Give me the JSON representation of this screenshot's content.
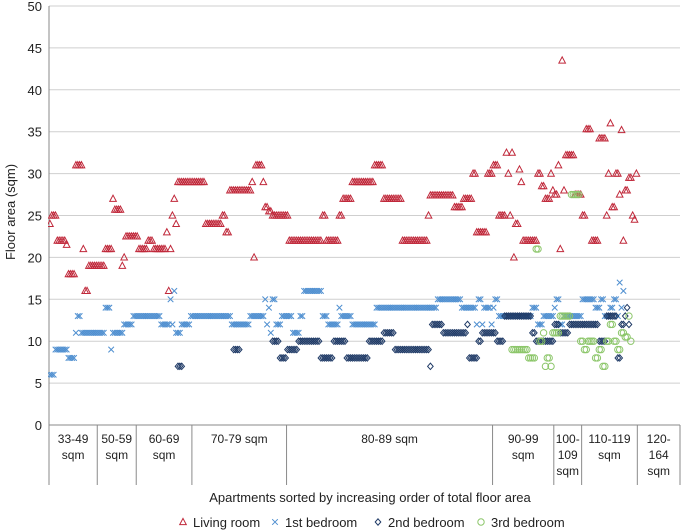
{
  "chart_data": {
    "type": "scatter",
    "title": "",
    "xlabel": "Apartments sorted by increasing order of total floor area",
    "ylabel": "Floor area (sqm)",
    "ylim": [
      0,
      50
    ],
    "yticks": [
      0,
      5,
      10,
      15,
      20,
      25,
      30,
      35,
      40,
      45,
      50
    ],
    "grid": "horizontal",
    "legend_position": "bottom",
    "x_count": 340,
    "groups": [
      {
        "label": "33-49 sqm",
        "start": 0,
        "end": 26
      },
      {
        "label": "50-59 sqm",
        "start": 26,
        "end": 47
      },
      {
        "label": "60-69 sqm",
        "start": 47,
        "end": 77
      },
      {
        "label": "70-79 sqm",
        "start": 77,
        "end": 128
      },
      {
        "label": "80-89 sqm",
        "start": 128,
        "end": 239
      },
      {
        "label": "90-99 sqm",
        "start": 239,
        "end": 272
      },
      {
        "label": "100-109 sqm",
        "start": 272,
        "end": 287
      },
      {
        "label": "110-119 sqm",
        "start": 287,
        "end": 317
      },
      {
        "label": "120-164 sqm",
        "start": 317,
        "end": 340
      }
    ],
    "series": [
      {
        "name": "Living room",
        "marker": "triangle",
        "color": "#c0283a",
        "runs": [
          [
            0,
            1,
            24
          ],
          [
            1,
            4,
            25
          ],
          [
            4,
            9,
            22
          ],
          [
            9,
            10,
            21.5
          ],
          [
            10,
            14,
            18
          ],
          [
            14,
            18,
            31
          ],
          [
            18,
            19,
            21
          ],
          [
            19,
            21,
            16
          ],
          [
            21,
            30,
            19
          ],
          [
            30,
            34,
            21
          ],
          [
            34,
            35,
            27
          ],
          [
            35,
            39,
            25.7
          ],
          [
            39,
            40,
            19
          ],
          [
            40,
            41,
            20
          ],
          [
            41,
            48,
            22.5
          ],
          [
            48,
            53,
            21
          ],
          [
            53,
            56,
            22
          ],
          [
            56,
            63,
            21
          ],
          [
            63,
            64,
            23
          ],
          [
            64,
            65,
            16
          ],
          [
            65,
            66,
            21
          ],
          [
            66,
            67,
            25
          ],
          [
            67,
            68,
            27
          ],
          [
            68,
            69,
            24
          ],
          [
            69,
            84,
            29
          ],
          [
            84,
            93,
            24
          ],
          [
            93,
            95,
            25
          ],
          [
            95,
            97,
            23
          ],
          [
            97,
            109,
            28
          ],
          [
            109,
            110,
            29
          ],
          [
            110,
            111,
            20
          ],
          [
            111,
            115,
            31
          ],
          [
            115,
            116,
            29
          ],
          [
            116,
            118,
            26
          ],
          [
            118,
            120,
            25.5
          ],
          [
            120,
            129,
            25
          ],
          [
            129,
            147,
            22
          ],
          [
            147,
            149,
            25
          ],
          [
            149,
            156,
            22
          ],
          [
            156,
            158,
            25
          ],
          [
            158,
            163,
            27
          ],
          [
            163,
            175,
            29
          ],
          [
            175,
            180,
            31
          ],
          [
            180,
            187,
            27
          ],
          [
            187,
            190,
            27
          ],
          [
            190,
            204,
            22
          ],
          [
            204,
            205,
            25
          ],
          [
            205,
            218,
            27.4
          ],
          [
            218,
            223,
            26
          ],
          [
            223,
            228,
            27
          ],
          [
            228,
            230,
            30
          ],
          [
            230,
            236,
            23
          ],
          [
            236,
            239,
            30
          ],
          [
            239,
            242,
            31
          ],
          [
            242,
            246,
            25
          ],
          [
            246,
            247,
            32.5
          ],
          [
            247,
            248,
            30
          ],
          [
            248,
            249,
            25
          ],
          [
            249,
            250,
            32.5
          ],
          [
            250,
            251,
            20
          ],
          [
            251,
            253,
            24
          ],
          [
            253,
            254,
            30.5
          ],
          [
            254,
            255,
            29
          ],
          [
            255,
            263,
            22
          ],
          [
            263,
            265,
            30
          ],
          [
            265,
            267,
            28.5
          ],
          [
            267,
            270,
            27
          ],
          [
            270,
            271,
            30
          ],
          [
            271,
            272,
            28
          ],
          [
            272,
            274,
            27.5
          ],
          [
            274,
            275,
            31
          ],
          [
            275,
            276,
            21
          ],
          [
            276,
            277,
            43.5
          ],
          [
            277,
            278,
            28
          ],
          [
            278,
            283,
            32.2
          ],
          [
            283,
            287,
            27.5
          ],
          [
            287,
            289,
            25
          ],
          [
            289,
            292,
            35.3
          ],
          [
            292,
            296,
            22
          ],
          [
            296,
            300,
            34.2
          ],
          [
            300,
            301,
            25
          ],
          [
            301,
            302,
            30
          ],
          [
            302,
            303,
            36
          ],
          [
            303,
            305,
            26
          ],
          [
            305,
            307,
            30
          ],
          [
            307,
            308,
            27.5
          ],
          [
            308,
            309,
            35.2
          ],
          [
            309,
            310,
            22
          ],
          [
            310,
            312,
            28
          ],
          [
            312,
            314,
            29.5
          ],
          [
            314,
            315,
            25
          ],
          [
            315,
            316,
            24.5
          ],
          [
            316,
            317,
            30
          ]
        ]
      },
      {
        "name": "1st bedroom",
        "marker": "x",
        "color": "#4f8fd0",
        "runs": [
          [
            0,
            3,
            6
          ],
          [
            3,
            10,
            9
          ],
          [
            10,
            14,
            8
          ],
          [
            14,
            15,
            11
          ],
          [
            15,
            17,
            13
          ],
          [
            17,
            30,
            11
          ],
          [
            30,
            33,
            14
          ],
          [
            33,
            34,
            9
          ],
          [
            34,
            40,
            11
          ],
          [
            40,
            45,
            12
          ],
          [
            45,
            60,
            13
          ],
          [
            60,
            65,
            12
          ],
          [
            65,
            66,
            15
          ],
          [
            66,
            67,
            12
          ],
          [
            67,
            68,
            16
          ],
          [
            68,
            71,
            11
          ],
          [
            71,
            76,
            12
          ],
          [
            76,
            98,
            13
          ],
          [
            98,
            108,
            12
          ],
          [
            108,
            116,
            13
          ],
          [
            116,
            117,
            15
          ],
          [
            117,
            118,
            12
          ],
          [
            118,
            119,
            14
          ],
          [
            119,
            120,
            11
          ],
          [
            120,
            122,
            15
          ],
          [
            122,
            125,
            12
          ],
          [
            125,
            131,
            13
          ],
          [
            131,
            135,
            11
          ],
          [
            135,
            137,
            13
          ],
          [
            137,
            147,
            16
          ],
          [
            147,
            150,
            13
          ],
          [
            150,
            156,
            12
          ],
          [
            156,
            157,
            14
          ],
          [
            157,
            163,
            13
          ],
          [
            163,
            176,
            12
          ],
          [
            176,
            177,
            14
          ],
          [
            177,
            209,
            14
          ],
          [
            209,
            222,
            15
          ],
          [
            222,
            230,
            14
          ],
          [
            230,
            231,
            12
          ],
          [
            231,
            233,
            15
          ],
          [
            233,
            234,
            12
          ],
          [
            234,
            238,
            14
          ],
          [
            238,
            239,
            12
          ],
          [
            239,
            240,
            14
          ],
          [
            240,
            242,
            15
          ],
          [
            242,
            260,
            13
          ],
          [
            260,
            263,
            14
          ],
          [
            263,
            266,
            12
          ],
          [
            266,
            272,
            13
          ],
          [
            272,
            273,
            14
          ],
          [
            273,
            275,
            15
          ],
          [
            275,
            277,
            12
          ],
          [
            277,
            287,
            13
          ],
          [
            287,
            294,
            15
          ],
          [
            294,
            297,
            14
          ],
          [
            297,
            299,
            15
          ],
          [
            299,
            302,
            13
          ],
          [
            302,
            304,
            14
          ],
          [
            304,
            306,
            15
          ],
          [
            306,
            307,
            13
          ],
          [
            307,
            308,
            17
          ],
          [
            308,
            309,
            14
          ],
          [
            309,
            310,
            16
          ]
        ]
      },
      {
        "name": "2nd bedroom",
        "marker": "diamond",
        "color": "#1f3a66",
        "runs": [
          [
            69,
            72,
            7
          ],
          [
            99,
            103,
            9
          ],
          [
            120,
            124,
            10
          ],
          [
            124,
            128,
            8
          ],
          [
            128,
            134,
            9
          ],
          [
            134,
            146,
            10
          ],
          [
            146,
            153,
            8
          ],
          [
            153,
            160,
            10
          ],
          [
            160,
            172,
            8
          ],
          [
            172,
            180,
            10
          ],
          [
            180,
            186,
            11
          ],
          [
            186,
            200,
            9
          ],
          [
            200,
            205,
            9
          ],
          [
            205,
            206,
            7
          ],
          [
            206,
            212,
            12
          ],
          [
            212,
            225,
            11
          ],
          [
            225,
            226,
            12
          ],
          [
            226,
            227,
            8
          ],
          [
            227,
            231,
            8
          ],
          [
            231,
            233,
            10
          ],
          [
            233,
            241,
            11
          ],
          [
            241,
            245,
            10
          ],
          [
            245,
            260,
            13
          ],
          [
            260,
            262,
            11
          ],
          [
            262,
            272,
            10
          ],
          [
            272,
            275,
            12
          ],
          [
            275,
            280,
            11
          ],
          [
            280,
            290,
            12
          ],
          [
            290,
            296,
            12
          ],
          [
            296,
            300,
            10
          ],
          [
            300,
            303,
            13
          ],
          [
            303,
            306,
            13
          ],
          [
            306,
            308,
            8
          ],
          [
            308,
            310,
            12
          ],
          [
            310,
            311,
            13
          ],
          [
            311,
            312,
            14
          ],
          [
            312,
            313,
            12
          ]
        ]
      },
      {
        "name": "3rd bedroom",
        "marker": "circle",
        "color": "#8cc66a",
        "runs": [
          [
            249,
            258,
            9
          ],
          [
            258,
            262,
            8
          ],
          [
            262,
            264,
            21
          ],
          [
            264,
            266,
            10
          ],
          [
            266,
            267,
            11
          ],
          [
            267,
            268,
            7
          ],
          [
            268,
            270,
            8
          ],
          [
            270,
            271,
            7
          ],
          [
            271,
            275,
            11
          ],
          [
            275,
            281,
            13
          ],
          [
            281,
            286,
            27.5
          ],
          [
            286,
            288,
            10
          ],
          [
            288,
            290,
            9
          ],
          [
            290,
            294,
            10
          ],
          [
            294,
            296,
            8
          ],
          [
            296,
            298,
            9
          ],
          [
            298,
            300,
            7
          ],
          [
            300,
            302,
            10
          ],
          [
            302,
            304,
            12
          ],
          [
            304,
            306,
            10
          ],
          [
            306,
            308,
            9
          ],
          [
            308,
            310,
            11
          ],
          [
            310,
            312,
            10.5
          ],
          [
            312,
            313,
            13
          ],
          [
            313,
            314,
            10
          ]
        ]
      }
    ]
  }
}
